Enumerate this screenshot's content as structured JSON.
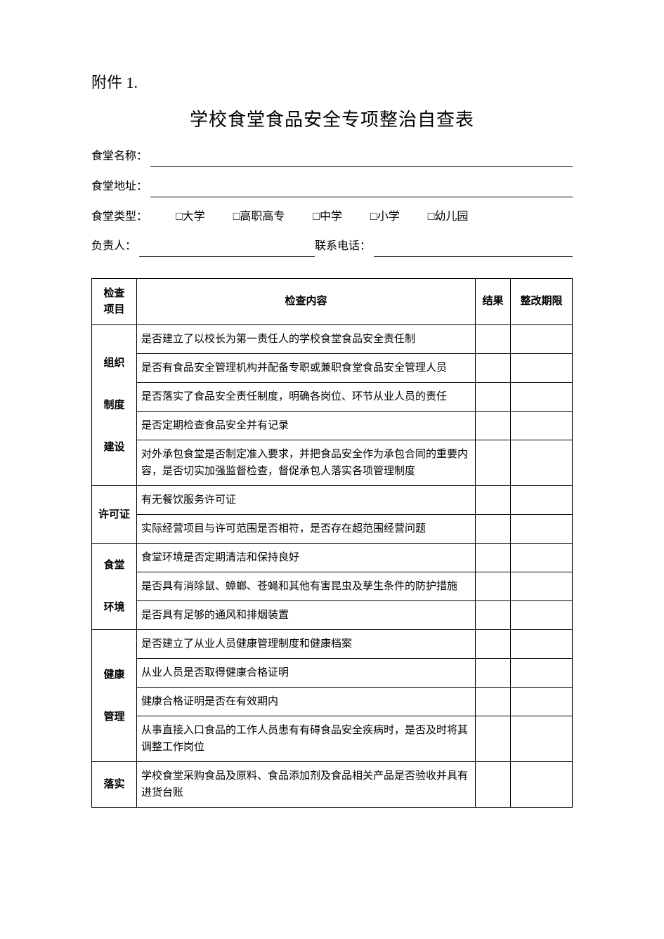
{
  "attachment_label": "附件 1.",
  "title": "学校食堂食品安全专项整治自查表",
  "form": {
    "name_label": "食堂名称：",
    "address_label": "食堂地址：",
    "type_label": "食堂类型：",
    "type_options": [
      "□大学",
      "□高职高专",
      "□中学",
      "□小学",
      "□幼儿园"
    ],
    "responsible_label": "负责人：",
    "phone_label": "联系电话："
  },
  "table": {
    "headers": [
      "检查\n项目",
      "检查内容",
      "结果",
      "整改期限"
    ],
    "sections": [
      {
        "category": "组织\n\n制度\n\n建设",
        "rows": [
          "是否建立了以校长为第一责任人的学校食堂食品安全责任制",
          "是否有食品安全管理机构并配备专职或兼职食堂食品安全管理人员",
          "是否落实了食品安全责任制度，明确各岗位、环节从业人员的责任",
          "是否定期检查食品安全并有记录",
          "对外承包食堂是否制定准入要求，并把食品安全作为承包合同的重要内容，是否切实加强监督检查，督促承包人落实各项管理制度"
        ]
      },
      {
        "category": "许可证",
        "rows": [
          "有无餐饮服务许可证",
          "实际经营项目与许可范围是否相符，是否存在超范围经营问题"
        ]
      },
      {
        "category": "食堂\n\n环境",
        "rows": [
          "食堂环境是否定期清洁和保持良好",
          "是否具有消除鼠、蟑螂、苍蝇和其他有害昆虫及孳生条件的防护措施",
          "是否具有足够的通风和排烟装置"
        ]
      },
      {
        "category": "健康\n\n管理",
        "rows": [
          "是否建立了从业人员健康管理制度和健康档案",
          "从业人员是否取得健康合格证明",
          "健康合格证明是否在有效期内",
          "从事直接入口食品的工作人员患有有碍食品安全疾病时，是否及时将其调整工作岗位"
        ]
      },
      {
        "category": "落实",
        "rows": [
          "学校食堂采购食品及原料、食品添加剂及食品相关产品是否验收并具有进货台账"
        ]
      }
    ]
  }
}
